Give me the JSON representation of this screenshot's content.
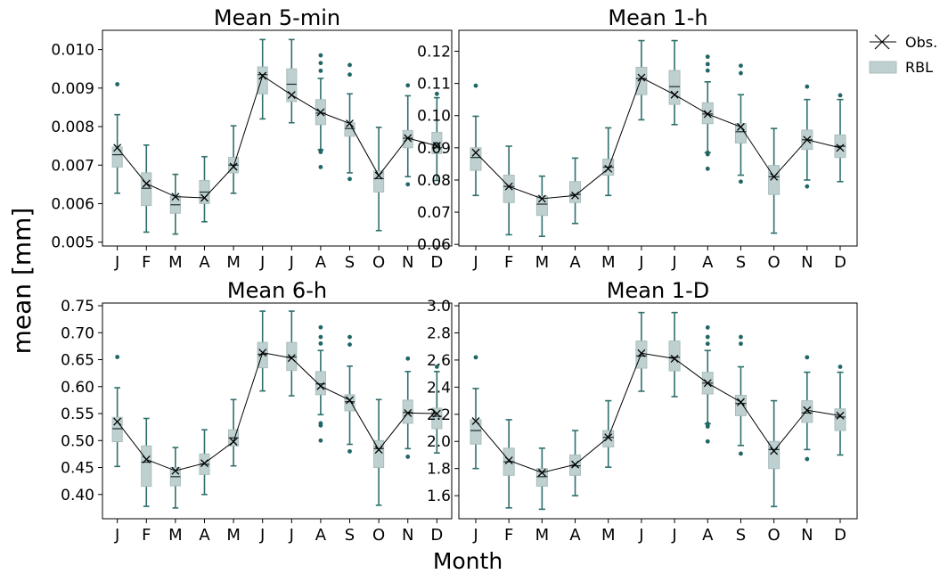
{
  "figure": {
    "ylabel": "mean [mm]",
    "xlabel": "Month",
    "legend": {
      "obs_label": "Obs.",
      "rbl_label": "RBL",
      "placement": "top-right outside"
    },
    "colors": {
      "box_fill": "#bfd0d0",
      "box_edge": "#a9bcbc",
      "whisker": "#2e6f6d",
      "flier": "#1f6664",
      "obs_line": "#000000"
    }
  },
  "chart_data": [
    {
      "type": "box",
      "title": "Mean 5-min",
      "categories": [
        "J",
        "F",
        "M",
        "A",
        "M",
        "J",
        "J",
        "A",
        "S",
        "O",
        "N",
        "D"
      ],
      "ylim": [
        0.0049,
        0.0105
      ],
      "yticks": [
        0.005,
        0.006,
        0.007,
        0.008,
        0.009,
        0.01
      ],
      "ytick_labels": [
        "0.005",
        "0.006",
        "0.007",
        "0.008",
        "0.009",
        "0.010"
      ],
      "series": [
        {
          "name": "RBL",
          "boxes": [
            {
              "q1": 0.00695,
              "median": 0.00727,
              "q3": 0.00747,
              "whislo": 0.00627,
              "whishi": 0.00831,
              "fliers": [
                0.0091
              ]
            },
            {
              "q1": 0.00595,
              "median": 0.0064,
              "q3": 0.0068,
              "whislo": 0.00526,
              "whishi": 0.00752,
              "fliers": []
            },
            {
              "q1": 0.00575,
              "median": 0.00597,
              "q3": 0.0062,
              "whislo": 0.00521,
              "whishi": 0.00676,
              "fliers": []
            },
            {
              "q1": 0.006,
              "median": 0.0063,
              "q3": 0.0066,
              "whislo": 0.00553,
              "whishi": 0.00722,
              "fliers": []
            },
            {
              "q1": 0.0068,
              "median": 0.007,
              "q3": 0.0072,
              "whislo": 0.00627,
              "whishi": 0.00802,
              "fliers": []
            },
            {
              "q1": 0.00885,
              "median": 0.00935,
              "q3": 0.00955,
              "whislo": 0.0082,
              "whishi": 0.01026,
              "fliers": []
            },
            {
              "q1": 0.00865,
              "median": 0.0091,
              "q3": 0.0095,
              "whislo": 0.0081,
              "whishi": 0.01026,
              "fliers": []
            },
            {
              "q1": 0.00805,
              "median": 0.00835,
              "q3": 0.0087,
              "whislo": 0.0074,
              "whishi": 0.00925,
              "fliers": [
                0.00985,
                0.00965,
                0.00945,
                0.00738,
                0.00734,
                0.00695
              ]
            },
            {
              "q1": 0.00775,
              "median": 0.00795,
              "q3": 0.0081,
              "whislo": 0.0068,
              "whishi": 0.00885,
              "fliers": [
                0.0096,
                0.00935,
                0.00664
              ]
            },
            {
              "q1": 0.0063,
              "median": 0.00665,
              "q3": 0.00685,
              "whislo": 0.0053,
              "whishi": 0.00798,
              "fliers": []
            },
            {
              "q1": 0.00745,
              "median": 0.0077,
              "q3": 0.0079,
              "whislo": 0.0067,
              "whishi": 0.0088,
              "fliers": [
                0.00907,
                0.0065
              ]
            },
            {
              "q1": 0.0073,
              "median": 0.00745,
              "q3": 0.00785,
              "whislo": 0.0066,
              "whishi": 0.00875,
              "fliers": [
                0.00885
              ]
            }
          ]
        },
        {
          "name": "Obs.",
          "values": [
            0.00745,
            0.00652,
            0.00618,
            0.00615,
            0.00696,
            0.00932,
            0.00882,
            0.00837,
            0.00808,
            0.00673,
            0.0077,
            0.0075
          ]
        }
      ]
    },
    {
      "type": "box",
      "title": "Mean 1-h",
      "categories": [
        "J",
        "F",
        "M",
        "A",
        "M",
        "J",
        "J",
        "A",
        "S",
        "O",
        "N",
        "D"
      ],
      "ylim": [
        0.0595,
        0.1265
      ],
      "yticks": [
        0.06,
        0.07,
        0.08,
        0.09,
        0.1,
        0.11,
        0.12
      ],
      "ytick_labels": [
        "0.06",
        "0.07",
        "0.08",
        "0.09",
        "0.10",
        "0.11",
        "0.12"
      ],
      "series": [
        {
          "name": "RBL",
          "boxes": [
            {
              "q1": 0.083,
              "median": 0.087,
              "q3": 0.09,
              "whislo": 0.0752,
              "whishi": 0.0998,
              "fliers": [
                0.1093
              ]
            },
            {
              "q1": 0.073,
              "median": 0.078,
              "q3": 0.0815,
              "whislo": 0.063,
              "whishi": 0.0905,
              "fliers": []
            },
            {
              "q1": 0.069,
              "median": 0.0725,
              "q3": 0.075,
              "whislo": 0.0625,
              "whishi": 0.0812,
              "fliers": []
            },
            {
              "q1": 0.073,
              "median": 0.0755,
              "q3": 0.0795,
              "whislo": 0.0665,
              "whishi": 0.0868,
              "fliers": []
            },
            {
              "q1": 0.0815,
              "median": 0.084,
              "q3": 0.0865,
              "whislo": 0.0752,
              "whishi": 0.0962,
              "fliers": []
            },
            {
              "q1": 0.1065,
              "median": 0.1115,
              "q3": 0.115,
              "whislo": 0.0987,
              "whishi": 0.1233,
              "fliers": []
            },
            {
              "q1": 0.1035,
              "median": 0.109,
              "q3": 0.114,
              "whislo": 0.0972,
              "whishi": 0.1233,
              "fliers": []
            },
            {
              "q1": 0.0975,
              "median": 0.1005,
              "q3": 0.104,
              "whislo": 0.0885,
              "whishi": 0.1105,
              "fliers": [
                0.1183,
                0.116,
                0.114,
                0.0885,
                0.088,
                0.0835
              ]
            },
            {
              "q1": 0.0915,
              "median": 0.095,
              "q3": 0.0975,
              "whislo": 0.0815,
              "whishi": 0.1065,
              "fliers": [
                0.1155,
                0.1132,
                0.0795
              ]
            },
            {
              "q1": 0.0755,
              "median": 0.081,
              "q3": 0.0845,
              "whislo": 0.0635,
              "whishi": 0.096,
              "fliers": []
            },
            {
              "q1": 0.0895,
              "median": 0.0925,
              "q3": 0.0955,
              "whislo": 0.08,
              "whishi": 0.105,
              "fliers": [
                0.109,
                0.078
              ]
            },
            {
              "q1": 0.087,
              "median": 0.0905,
              "q3": 0.094,
              "whislo": 0.0795,
              "whishi": 0.105,
              "fliers": [
                0.1063
              ]
            }
          ]
        },
        {
          "name": "Obs.",
          "values": [
            0.0885,
            0.078,
            0.0742,
            0.0752,
            0.0835,
            0.1118,
            0.1065,
            0.1005,
            0.0965,
            0.081,
            0.0925,
            0.09
          ]
        }
      ]
    },
    {
      "type": "box",
      "title": "Mean 6-h",
      "categories": [
        "J",
        "F",
        "M",
        "A",
        "M",
        "J",
        "J",
        "A",
        "S",
        "O",
        "N",
        "D"
      ],
      "ylim": [
        0.355,
        0.755
      ],
      "yticks": [
        0.4,
        0.45,
        0.5,
        0.55,
        0.6,
        0.65,
        0.7,
        0.75
      ],
      "ytick_labels": [
        "0.40",
        "0.45",
        "0.50",
        "0.55",
        "0.60",
        "0.65",
        "0.70",
        "0.75"
      ],
      "series": [
        {
          "name": "RBL",
          "boxes": [
            {
              "q1": 0.498,
              "median": 0.522,
              "q3": 0.543,
              "whislo": 0.452,
              "whishi": 0.598,
              "fliers": [
                0.655
              ]
            },
            {
              "q1": 0.415,
              "median": 0.46,
              "q3": 0.49,
              "whislo": 0.378,
              "whishi": 0.541,
              "fliers": []
            },
            {
              "q1": 0.416,
              "median": 0.433,
              "q3": 0.45,
              "whislo": 0.375,
              "whishi": 0.487,
              "fliers": []
            },
            {
              "q1": 0.437,
              "median": 0.456,
              "q3": 0.475,
              "whislo": 0.4,
              "whishi": 0.52,
              "fliers": []
            },
            {
              "q1": 0.49,
              "median": 0.505,
              "q3": 0.52,
              "whislo": 0.453,
              "whishi": 0.576,
              "fliers": []
            },
            {
              "q1": 0.635,
              "median": 0.66,
              "q3": 0.682,
              "whislo": 0.592,
              "whishi": 0.74,
              "fliers": []
            },
            {
              "q1": 0.63,
              "median": 0.655,
              "q3": 0.682,
              "whislo": 0.583,
              "whishi": 0.74,
              "fliers": []
            },
            {
              "q1": 0.585,
              "median": 0.605,
              "q3": 0.628,
              "whislo": 0.548,
              "whishi": 0.667,
              "fliers": [
                0.71,
                0.692,
                0.68,
                0.532,
                0.528,
                0.5
              ]
            },
            {
              "q1": 0.555,
              "median": 0.572,
              "q3": 0.585,
              "whislo": 0.493,
              "whishi": 0.638,
              "fliers": [
                0.692,
                0.678,
                0.48
              ]
            },
            {
              "q1": 0.45,
              "median": 0.485,
              "q3": 0.5,
              "whislo": 0.38,
              "whishi": 0.576,
              "fliers": []
            },
            {
              "q1": 0.532,
              "median": 0.552,
              "q3": 0.575,
              "whislo": 0.485,
              "whishi": 0.628,
              "fliers": [
                0.652,
                0.47
              ]
            },
            {
              "q1": 0.522,
              "median": 0.545,
              "q3": 0.56,
              "whislo": 0.477,
              "whishi": 0.628,
              "fliers": [
                0.637
              ]
            }
          ]
        },
        {
          "name": "Obs.",
          "values": [
            0.535,
            0.465,
            0.444,
            0.458,
            0.498,
            0.663,
            0.653,
            0.601,
            0.575,
            0.483,
            0.551,
            0.55
          ]
        }
      ]
    },
    {
      "type": "box",
      "title": "Mean 1-D",
      "categories": [
        "J",
        "F",
        "M",
        "A",
        "M",
        "J",
        "J",
        "A",
        "S",
        "O",
        "N",
        "D"
      ],
      "ylim": [
        1.43,
        3.02
      ],
      "yticks": [
        1.6,
        1.8,
        2.0,
        2.2,
        2.4,
        2.6,
        2.8,
        3.0
      ],
      "ytick_labels": [
        "1.6",
        "1.8",
        "2.0",
        "2.2",
        "2.4",
        "2.6",
        "2.8",
        "3.0"
      ],
      "series": [
        {
          "name": "RBL",
          "boxes": [
            {
              "q1": 1.98,
              "median": 2.08,
              "q3": 2.16,
              "whislo": 1.8,
              "whishi": 2.39,
              "fliers": [
                2.62
              ]
            },
            {
              "q1": 1.75,
              "median": 1.85,
              "q3": 1.95,
              "whislo": 1.51,
              "whishi": 2.16,
              "fliers": []
            },
            {
              "q1": 1.67,
              "median": 1.74,
              "q3": 1.8,
              "whislo": 1.5,
              "whishi": 1.95,
              "fliers": []
            },
            {
              "q1": 1.75,
              "median": 1.82,
              "q3": 1.9,
              "whislo": 1.6,
              "whishi": 2.08,
              "fliers": []
            },
            {
              "q1": 1.96,
              "median": 2.03,
              "q3": 2.08,
              "whislo": 1.81,
              "whishi": 2.3,
              "fliers": []
            },
            {
              "q1": 2.54,
              "median": 2.63,
              "q3": 2.74,
              "whislo": 2.37,
              "whishi": 2.95,
              "fliers": []
            },
            {
              "q1": 2.52,
              "median": 2.62,
              "q3": 2.74,
              "whislo": 2.33,
              "whishi": 2.95,
              "fliers": []
            },
            {
              "q1": 2.35,
              "median": 2.43,
              "q3": 2.51,
              "whislo": 2.13,
              "whishi": 2.67,
              "fliers": [
                2.84,
                2.77,
                2.72,
                2.13,
                2.11,
                2.0
              ]
            },
            {
              "q1": 2.19,
              "median": 2.28,
              "q3": 2.34,
              "whislo": 1.97,
              "whishi": 2.55,
              "fliers": [
                2.77,
                2.72,
                1.91
              ]
            },
            {
              "q1": 1.8,
              "median": 1.94,
              "q3": 2.0,
              "whislo": 1.52,
              "whishi": 2.3,
              "fliers": []
            },
            {
              "q1": 2.14,
              "median": 2.21,
              "q3": 2.3,
              "whislo": 1.94,
              "whishi": 2.51,
              "fliers": [
                2.62,
                1.87
              ]
            },
            {
              "q1": 2.08,
              "median": 2.18,
              "q3": 2.24,
              "whislo": 1.9,
              "whishi": 2.51,
              "fliers": [
                2.55
              ]
            }
          ]
        },
        {
          "name": "Obs.",
          "values": [
            2.15,
            1.86,
            1.77,
            1.83,
            2.03,
            2.65,
            2.61,
            2.43,
            2.29,
            1.93,
            2.23,
            2.19
          ]
        }
      ]
    }
  ]
}
